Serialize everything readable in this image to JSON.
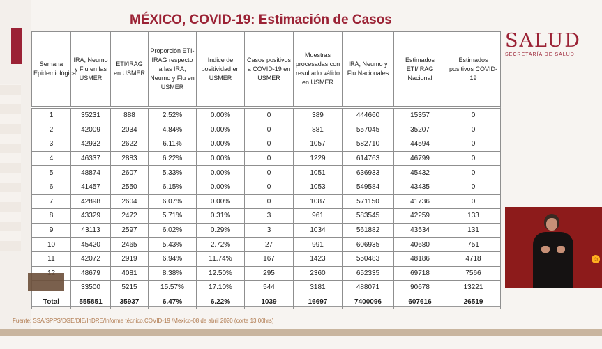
{
  "title": "MÉXICO, COVID-19: Estimación de Casos",
  "logo": {
    "main": "SALUD",
    "sub": "SECRETARÍA DE SALUD"
  },
  "table": {
    "headers": [
      "Semana Epidemiológica",
      "IRA, Neumo y Flu en las USMER",
      "ETI/IRAG en USMER",
      "Proporción ETI-IRAG respecto a las IRA, Neumo y Flu en USMER",
      "Indice de positividad en USMER",
      "Casos positivos a COVID-19 en USMER",
      "Muestras procesadas con resultado válido en USMER",
      "IRA, Neumo y Flu Nacionales",
      "Estimados ETI/IRAG Nacional",
      "Estimados positivos COVID-19"
    ],
    "rows": [
      [
        "1",
        "35231",
        "888",
        "2.52%",
        "0.00%",
        "0",
        "389",
        "444660",
        "15357",
        "0"
      ],
      [
        "2",
        "42009",
        "2034",
        "4.84%",
        "0.00%",
        "0",
        "881",
        "557045",
        "35207",
        "0"
      ],
      [
        "3",
        "42932",
        "2622",
        "6.11%",
        "0.00%",
        "0",
        "1057",
        "582710",
        "44594",
        "0"
      ],
      [
        "4",
        "46337",
        "2883",
        "6.22%",
        "0.00%",
        "0",
        "1229",
        "614763",
        "46799",
        "0"
      ],
      [
        "5",
        "48874",
        "2607",
        "5.33%",
        "0.00%",
        "0",
        "1051",
        "636933",
        "45432",
        "0"
      ],
      [
        "6",
        "41457",
        "2550",
        "6.15%",
        "0.00%",
        "0",
        "1053",
        "549584",
        "43435",
        "0"
      ],
      [
        "7",
        "42898",
        "2604",
        "6.07%",
        "0.00%",
        "0",
        "1087",
        "571150",
        "41736",
        "0"
      ],
      [
        "8",
        "43329",
        "2472",
        "5.71%",
        "0.31%",
        "3",
        "961",
        "583545",
        "42259",
        "133"
      ],
      [
        "9",
        "43113",
        "2597",
        "6.02%",
        "0.29%",
        "3",
        "1034",
        "561882",
        "43534",
        "131"
      ],
      [
        "10",
        "45420",
        "2465",
        "5.43%",
        "2.72%",
        "27",
        "991",
        "606935",
        "40680",
        "751"
      ],
      [
        "11",
        "42072",
        "2919",
        "6.94%",
        "11.74%",
        "167",
        "1423",
        "550483",
        "48186",
        "4718"
      ],
      [
        "12",
        "48679",
        "4081",
        "8.38%",
        "12.50%",
        "295",
        "2360",
        "652335",
        "69718",
        "7566"
      ],
      [
        "",
        "33500",
        "5215",
        "15.57%",
        "17.10%",
        "544",
        "3181",
        "488071",
        "90678",
        "13221"
      ]
    ],
    "total": [
      "Total",
      "555851",
      "35937",
      "6.47%",
      "6.22%",
      "1039",
      "16697",
      "7400096",
      "607616",
      "26519"
    ]
  },
  "footer": {
    "source": "Fuente: SSA/SPPS/DGE/DIE/InDRE/Informe técnico.COVID-19 /Mexico-08 de abril 2020 (corte 13:00hrs)"
  },
  "colors": {
    "brand": "#9b2235",
    "footer_text": "#b07a4f",
    "bottom_bar": "#c9b59f"
  }
}
